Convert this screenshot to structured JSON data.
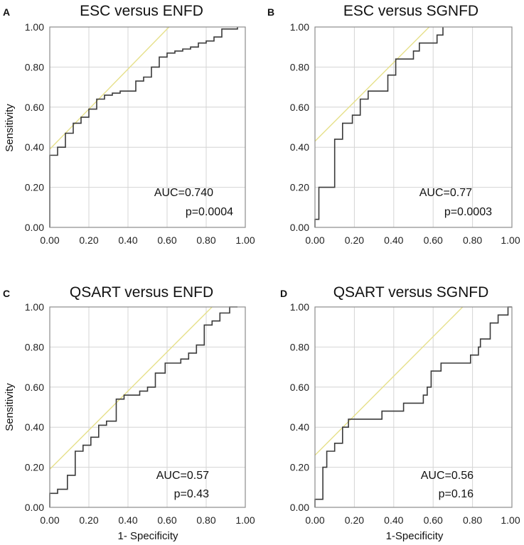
{
  "colors": {
    "grid": "#d4d4d4",
    "frame": "#8c8c8c",
    "roc": "#3a3a3a",
    "reference": "#e6e08a"
  },
  "chart_data": [
    {
      "panel": "A",
      "type": "line",
      "title": "ESC versus ENFD",
      "xlabel": "",
      "ylabel": "Sensitivity",
      "xlim": [
        0,
        1
      ],
      "ylim": [
        0,
        1
      ],
      "x_ticks": [
        "0.00",
        "0.20",
        "0.40",
        "0.60",
        "0.80",
        "1.00"
      ],
      "y_ticks": [
        "0.00",
        "0.20",
        "0.40",
        "0.60",
        "0.80",
        "1.00"
      ],
      "annotations": [
        "AUC=0.740",
        "p=0.0004"
      ],
      "reference_line": {
        "x": [
          0,
          0.61
        ],
        "y": [
          0.39,
          1.0
        ]
      },
      "series": [
        {
          "name": "ROC",
          "x": [
            0,
            0,
            0.04,
            0.04,
            0.08,
            0.08,
            0.12,
            0.12,
            0.16,
            0.16,
            0.2,
            0.2,
            0.24,
            0.24,
            0.28,
            0.28,
            0.32,
            0.32,
            0.36,
            0.36,
            0.44,
            0.44,
            0.48,
            0.48,
            0.52,
            0.52,
            0.56,
            0.56,
            0.6,
            0.6,
            0.64,
            0.64,
            0.68,
            0.68,
            0.72,
            0.72,
            0.76,
            0.76,
            0.8,
            0.8,
            0.84,
            0.84,
            0.88,
            0.88,
            0.96,
            0.96
          ],
          "y": [
            0,
            0.36,
            0.36,
            0.4,
            0.4,
            0.47,
            0.47,
            0.52,
            0.52,
            0.55,
            0.55,
            0.59,
            0.59,
            0.64,
            0.64,
            0.66,
            0.66,
            0.67,
            0.67,
            0.68,
            0.68,
            0.73,
            0.73,
            0.75,
            0.75,
            0.8,
            0.8,
            0.85,
            0.85,
            0.87,
            0.87,
            0.88,
            0.88,
            0.89,
            0.89,
            0.9,
            0.9,
            0.92,
            0.92,
            0.93,
            0.93,
            0.95,
            0.95,
            0.99,
            0.99,
            1.0
          ]
        }
      ]
    },
    {
      "panel": "B",
      "type": "line",
      "title": "ESC versus SGNFD",
      "xlabel": "",
      "ylabel": "",
      "xlim": [
        0,
        1
      ],
      "ylim": [
        0,
        1
      ],
      "x_ticks": [
        "0.00",
        "0.20",
        "0.40",
        "0.60",
        "0.80",
        "1.00"
      ],
      "y_ticks": [
        "0.00",
        "0.20",
        "0.40",
        "0.60",
        "0.80",
        "1.00"
      ],
      "annotations": [
        "AUC=0.77",
        "p=0.0003"
      ],
      "reference_line": {
        "x": [
          0,
          0.58
        ],
        "y": [
          0.43,
          1.0
        ]
      },
      "series": [
        {
          "name": "ROC",
          "x": [
            0,
            0,
            0.02,
            0.02,
            0.1,
            0.1,
            0.14,
            0.14,
            0.19,
            0.19,
            0.23,
            0.23,
            0.27,
            0.27,
            0.37,
            0.37,
            0.41,
            0.41,
            0.5,
            0.5,
            0.53,
            0.53,
            0.62,
            0.62,
            0.65,
            0.65
          ],
          "y": [
            0,
            0.04,
            0.04,
            0.2,
            0.2,
            0.44,
            0.44,
            0.52,
            0.52,
            0.56,
            0.56,
            0.64,
            0.64,
            0.68,
            0.68,
            0.76,
            0.76,
            0.84,
            0.84,
            0.88,
            0.88,
            0.92,
            0.92,
            0.96,
            0.96,
            1.0
          ]
        }
      ]
    },
    {
      "panel": "C",
      "type": "line",
      "title": "QSART versus ENFD",
      "xlabel": "1- Specificity",
      "ylabel": "Sensitivity",
      "xlim": [
        0,
        1
      ],
      "ylim": [
        0,
        1
      ],
      "x_ticks": [
        "0.00",
        "0.20",
        "0.40",
        "0.60",
        "0.80",
        "1.00"
      ],
      "y_ticks": [
        "0.00",
        "0.20",
        "0.40",
        "0.60",
        "0.80",
        "1.00"
      ],
      "annotations": [
        "AUC=0.57",
        "p=0.43"
      ],
      "reference_line": {
        "x": [
          0,
          0.83
        ],
        "y": [
          0.19,
          1.0
        ]
      },
      "series": [
        {
          "name": "ROC",
          "x": [
            0,
            0,
            0.04,
            0.04,
            0.09,
            0.09,
            0.13,
            0.13,
            0.17,
            0.17,
            0.21,
            0.21,
            0.25,
            0.25,
            0.29,
            0.29,
            0.34,
            0.34,
            0.38,
            0.38,
            0.46,
            0.46,
            0.5,
            0.5,
            0.54,
            0.54,
            0.59,
            0.59,
            0.67,
            0.67,
            0.71,
            0.71,
            0.75,
            0.75,
            0.79,
            0.79,
            0.83,
            0.83,
            0.87,
            0.87,
            0.92,
            0.92,
            0.96,
            0.96
          ],
          "y": [
            0,
            0.07,
            0.07,
            0.09,
            0.09,
            0.16,
            0.16,
            0.28,
            0.28,
            0.31,
            0.31,
            0.35,
            0.35,
            0.41,
            0.41,
            0.43,
            0.43,
            0.54,
            0.54,
            0.56,
            0.56,
            0.58,
            0.58,
            0.6,
            0.6,
            0.67,
            0.67,
            0.72,
            0.72,
            0.74,
            0.74,
            0.77,
            0.77,
            0.81,
            0.81,
            0.91,
            0.91,
            0.93,
            0.93,
            0.97,
            0.97,
            1.0,
            1.0,
            1.0
          ]
        }
      ]
    },
    {
      "panel": "D",
      "type": "line",
      "title": "QSART versus SGNFD",
      "xlabel": "1-Specificity",
      "ylabel": "",
      "xlim": [
        0,
        1
      ],
      "ylim": [
        0,
        1
      ],
      "x_ticks": [
        "0.00",
        "0.20",
        "0.40",
        "0.60",
        "0.80",
        "1.00"
      ],
      "y_ticks": [
        "0.00",
        "0.20",
        "0.40",
        "0.60",
        "0.80",
        "1.00"
      ],
      "annotations": [
        "AUC=0.56",
        "p=0.16"
      ],
      "reference_line": {
        "x": [
          0,
          0.75
        ],
        "y": [
          0.26,
          1.0
        ]
      },
      "series": [
        {
          "name": "ROC",
          "x": [
            0,
            0,
            0.04,
            0.04,
            0.06,
            0.06,
            0.1,
            0.1,
            0.14,
            0.14,
            0.17,
            0.17,
            0.34,
            0.34,
            0.45,
            0.45,
            0.55,
            0.55,
            0.57,
            0.57,
            0.59,
            0.59,
            0.64,
            0.64,
            0.79,
            0.79,
            0.83,
            0.83,
            0.84,
            0.84,
            0.89,
            0.89,
            0.93,
            0.93,
            0.98,
            0.98,
            1.0
          ],
          "y": [
            0,
            0.04,
            0.04,
            0.2,
            0.2,
            0.28,
            0.28,
            0.32,
            0.32,
            0.4,
            0.4,
            0.44,
            0.44,
            0.48,
            0.48,
            0.52,
            0.52,
            0.56,
            0.56,
            0.6,
            0.6,
            0.68,
            0.68,
            0.72,
            0.72,
            0.76,
            0.76,
            0.8,
            0.8,
            0.84,
            0.84,
            0.92,
            0.92,
            0.96,
            0.96,
            1.0,
            1.0
          ]
        }
      ]
    }
  ]
}
